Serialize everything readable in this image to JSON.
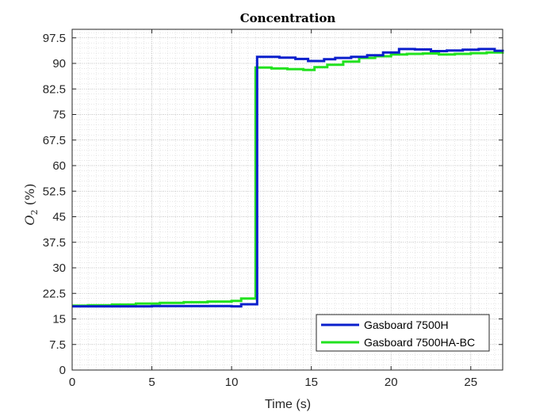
{
  "chart_data": {
    "type": "line",
    "title": "Concentration",
    "xlabel": "Time (s)",
    "ylabel": "O2 (%)",
    "ylabel_parts": {
      "symbol": "O",
      "sub": "2",
      "unit": " (%)"
    },
    "xlim": [
      0,
      27
    ],
    "ylim": [
      0,
      100
    ],
    "xticks": [
      "0",
      "5",
      "10",
      "15",
      "20",
      "25"
    ],
    "yticks": [
      "0",
      "7.5",
      "15",
      "22.5",
      "30",
      "37.5",
      "45",
      "52.5",
      "60",
      "67.5",
      "75",
      "82.5",
      "90",
      "97.5"
    ],
    "grid": "on (major and minor, dotted)",
    "legend_position": "bottom-right",
    "series": [
      {
        "name": "Gasboard 7500H",
        "color": "#0a1fcc",
        "x": [
          0,
          5,
          10,
          10.6,
          11.5,
          11.6,
          12.5,
          13,
          14,
          14.8,
          15.8,
          16.5,
          17.5,
          18.5,
          19.5,
          20.5,
          21.5,
          22.5,
          23.5,
          24.5,
          25.5,
          26.5,
          27
        ],
        "y": [
          18.7,
          18.8,
          18.7,
          19.3,
          19.3,
          91.9,
          91.9,
          91.7,
          91.3,
          90.7,
          91.2,
          91.6,
          91.9,
          92.4,
          93.2,
          94.2,
          94.1,
          93.6,
          93.8,
          94.0,
          94.2,
          93.7,
          93.4
        ]
      },
      {
        "name": "Gasboard 7500HA-BC",
        "color": "#22e21f",
        "x": [
          0,
          1,
          2.5,
          4,
          5.5,
          7,
          8.5,
          10,
          10.6,
          11.4,
          11.5,
          12.5,
          13.5,
          14.5,
          15.2,
          16,
          17,
          18,
          19,
          20,
          21,
          22,
          23,
          24,
          25,
          26,
          27
        ],
        "y": [
          18.9,
          19.0,
          19.2,
          19.5,
          19.7,
          19.9,
          20.1,
          20.3,
          21.0,
          21.0,
          88.8,
          88.5,
          88.3,
          88.1,
          88.9,
          89.6,
          90.5,
          91.6,
          92.1,
          92.6,
          92.8,
          92.9,
          92.6,
          92.8,
          93.0,
          93.2,
          93.3
        ]
      }
    ]
  }
}
